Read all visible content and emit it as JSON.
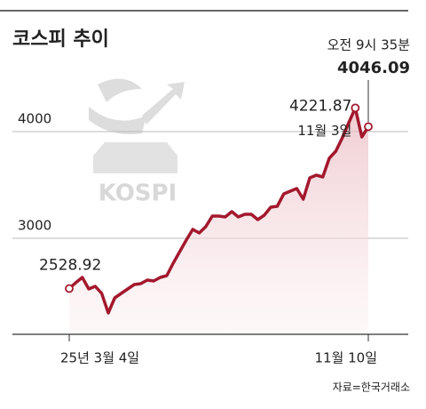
{
  "chart_data": {
    "type": "line",
    "title": "코스피 추이",
    "categories": [
      "25년 3월 4일",
      null,
      null,
      null,
      null,
      null,
      null,
      null,
      null,
      null,
      null,
      null,
      null,
      null,
      null,
      null,
      null,
      null,
      null,
      null,
      null,
      null,
      null,
      null,
      null,
      null,
      null,
      null,
      null,
      null,
      null,
      null,
      null,
      null,
      null,
      null,
      null,
      null,
      null,
      null,
      null,
      null,
      null,
      null,
      null,
      null,
      "11월 10일"
    ],
    "values": [
      2528.92,
      2583,
      2633,
      2525,
      2550,
      2483,
      2300,
      2442,
      2483,
      2525,
      2567,
      2575,
      2608,
      2600,
      2633,
      2650,
      2767,
      2875,
      2983,
      3083,
      3050,
      3108,
      3208,
      3208,
      3200,
      3250,
      3200,
      3225,
      3225,
      3175,
      3217,
      3292,
      3300,
      3417,
      3442,
      3467,
      3367,
      3567,
      3592,
      3575,
      3750,
      3817,
      3942,
      4083,
      4221.87,
      3950,
      4046.09
    ],
    "color": "#a3182d",
    "ylim": [
      2100,
      4600
    ],
    "yticks": [
      3000,
      4000
    ],
    "grid": true,
    "annotations": {
      "peak_date": "11월 3일",
      "time": "오전 9시 35분"
    },
    "watermark": "KOSPI",
    "source": "자료=한국거래소"
  }
}
